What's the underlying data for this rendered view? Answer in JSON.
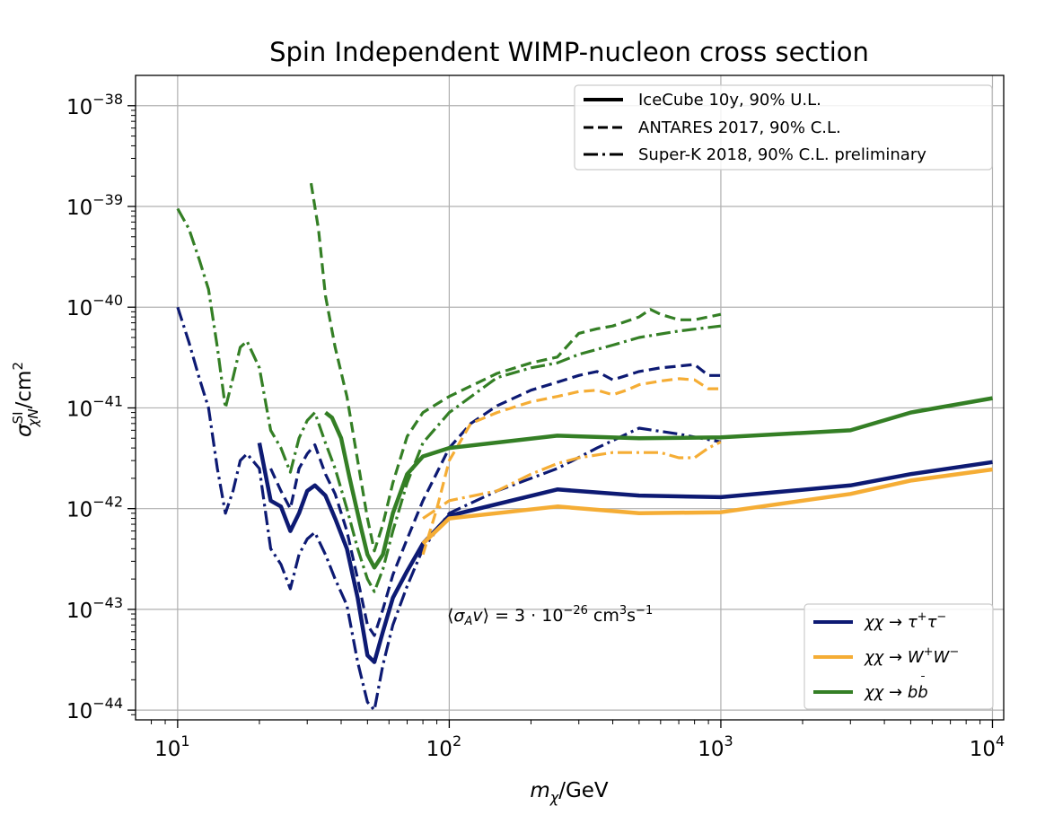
{
  "chart_data": {
    "type": "line",
    "title": "Spin Independent WIMP-nucleon cross section",
    "xlabel": "m_χ/GeV",
    "ylabel": "σ^SI_χN/cm²",
    "xscale": "log",
    "yscale": "log",
    "xlim": [
      7,
      11000
    ],
    "ylim": [
      8e-45,
      2e-38
    ],
    "grid": true,
    "x_ticks": [
      {
        "base": "10",
        "exp": "1",
        "value": 10
      },
      {
        "base": "10",
        "exp": "2",
        "value": 100
      },
      {
        "base": "10",
        "exp": "3",
        "value": 1000
      },
      {
        "base": "10",
        "exp": "4",
        "value": 10000
      }
    ],
    "y_ticks": [
      {
        "base": "10",
        "exp": "−38",
        "value": 1e-38
      },
      {
        "base": "10",
        "exp": "−39",
        "value": 1e-39
      },
      {
        "base": "10",
        "exp": "−40",
        "value": 1e-40
      },
      {
        "base": "10",
        "exp": "−41",
        "value": 1e-41
      },
      {
        "base": "10",
        "exp": "−42",
        "value": 1e-42
      },
      {
        "base": "10",
        "exp": "−43",
        "value": 1e-43
      },
      {
        "base": "10",
        "exp": "−44",
        "value": 1e-44
      }
    ],
    "annotation": "⟨σ_A v⟩ = 3 · 10⁻²⁶ cm³s⁻¹",
    "legend_styles": {
      "placement": "top-right",
      "entries": [
        {
          "label": "IceCube 10y, 90% U.L.",
          "style": "solid"
        },
        {
          "label": "ANTARES 2017, 90% C.L.",
          "style": "dashed"
        },
        {
          "label": "Super-K 2018, 90% C.L. preliminary",
          "style": "dashdot"
        }
      ]
    },
    "legend_channels": {
      "placement": "bottom-right",
      "entries": [
        {
          "label": "χχ → τ⁺τ⁻",
          "color": "#0d1a73"
        },
        {
          "label": "χχ → W⁺W⁻",
          "color": "#f5ad35"
        },
        {
          "label": "χχ → b b̄",
          "color": "#347f25"
        }
      ]
    },
    "series": [
      {
        "channel": "tau",
        "style": "solid",
        "color": "#0d1a73",
        "points": [
          [
            20,
            4.5e-42
          ],
          [
            22,
            1.2e-42
          ],
          [
            24,
            1.05e-42
          ],
          [
            26,
            6e-43
          ],
          [
            28,
            9e-43
          ],
          [
            30,
            1.5e-42
          ],
          [
            32,
            1.7e-42
          ],
          [
            35,
            1.35e-42
          ],
          [
            38,
            8e-43
          ],
          [
            42,
            4e-43
          ],
          [
            46,
            1.3e-43
          ],
          [
            50,
            3.5e-44
          ],
          [
            53,
            3e-44
          ],
          [
            57,
            6e-44
          ],
          [
            62,
            1.3e-43
          ],
          [
            70,
            2.4e-43
          ],
          [
            80,
            4.5e-43
          ],
          [
            100,
            8.5e-43
          ],
          [
            250,
            1.55e-42
          ],
          [
            500,
            1.35e-42
          ],
          [
            1000,
            1.3e-42
          ],
          [
            3000,
            1.7e-42
          ],
          [
            5000,
            2.2e-42
          ],
          [
            10000,
            2.9e-42
          ]
        ]
      },
      {
        "channel": "tau",
        "style": "dashed",
        "color": "#0d1a73",
        "points": [
          [
            22,
            2.5e-42
          ],
          [
            24,
            1.5e-42
          ],
          [
            26,
            1e-42
          ],
          [
            28,
            2.5e-42
          ],
          [
            30,
            3.5e-42
          ],
          [
            32,
            4.3e-42
          ],
          [
            35,
            2.2e-42
          ],
          [
            38,
            1.4e-42
          ],
          [
            42,
            6e-43
          ],
          [
            46,
            2e-43
          ],
          [
            50,
            7e-44
          ],
          [
            53,
            5.5e-44
          ],
          [
            57,
            1e-43
          ],
          [
            62,
            2.2e-43
          ],
          [
            70,
            5e-43
          ],
          [
            80,
            1.2e-42
          ],
          [
            100,
            4e-42
          ],
          [
            120,
            7e-42
          ],
          [
            150,
            1.05e-41
          ],
          [
            200,
            1.5e-41
          ],
          [
            250,
            1.8e-41
          ],
          [
            300,
            2.1e-41
          ],
          [
            350,
            2.3e-41
          ],
          [
            400,
            1.9e-41
          ],
          [
            500,
            2.3e-41
          ],
          [
            600,
            2.5e-41
          ],
          [
            700,
            2.6e-41
          ],
          [
            800,
            2.7e-41
          ],
          [
            900,
            2.1e-41
          ],
          [
            1000,
            2.1e-41
          ]
        ]
      },
      {
        "channel": "tau",
        "style": "dashdot",
        "color": "#0d1a73",
        "points": [
          [
            10,
            1e-40
          ],
          [
            11,
            4.5e-41
          ],
          [
            12,
            2e-41
          ],
          [
            13,
            1e-41
          ],
          [
            14,
            2.5e-42
          ],
          [
            15,
            9e-43
          ],
          [
            16,
            1.5e-42
          ],
          [
            17,
            3e-42
          ],
          [
            18,
            3.5e-42
          ],
          [
            20,
            2.5e-42
          ],
          [
            22,
            4e-43
          ],
          [
            24,
            2.8e-43
          ],
          [
            26,
            1.6e-43
          ],
          [
            28,
            3.5e-43
          ],
          [
            30,
            5e-43
          ],
          [
            32,
            5.8e-43
          ],
          [
            35,
            3.5e-43
          ],
          [
            38,
            2e-43
          ],
          [
            42,
            1.1e-43
          ],
          [
            46,
            3e-44
          ],
          [
            50,
            1.2e-44
          ],
          [
            53,
            1e-44
          ],
          [
            57,
            2.8e-44
          ],
          [
            62,
            7e-44
          ],
          [
            70,
            1.7e-43
          ],
          [
            80,
            4e-43
          ],
          [
            100,
            9e-43
          ],
          [
            150,
            1.5e-42
          ],
          [
            250,
            2.5e-42
          ],
          [
            350,
            4e-42
          ],
          [
            500,
            6.3e-42
          ],
          [
            700,
            5.5e-42
          ],
          [
            1000,
            4.6e-42
          ]
        ]
      },
      {
        "channel": "ww",
        "style": "solid",
        "color": "#f5ad35",
        "points": [
          [
            80,
            4.5e-43
          ],
          [
            100,
            8e-43
          ],
          [
            250,
            1.05e-42
          ],
          [
            500,
            9e-43
          ],
          [
            1000,
            9.2e-43
          ],
          [
            3000,
            1.4e-42
          ],
          [
            5000,
            1.9e-42
          ],
          [
            10000,
            2.45e-42
          ]
        ]
      },
      {
        "channel": "ww",
        "style": "dashed",
        "color": "#f5ad35",
        "points": [
          [
            80,
            3.5e-43
          ],
          [
            90,
            1e-42
          ],
          [
            100,
            3e-42
          ],
          [
            120,
            7e-42
          ],
          [
            150,
            9e-42
          ],
          [
            200,
            1.15e-41
          ],
          [
            250,
            1.3e-41
          ],
          [
            300,
            1.45e-41
          ],
          [
            350,
            1.5e-41
          ],
          [
            400,
            1.35e-41
          ],
          [
            450,
            1.5e-41
          ],
          [
            500,
            1.7e-41
          ],
          [
            600,
            1.85e-41
          ],
          [
            700,
            1.95e-41
          ],
          [
            800,
            1.9e-41
          ],
          [
            900,
            1.55e-41
          ],
          [
            1000,
            1.55e-41
          ]
        ]
      },
      {
        "channel": "ww",
        "style": "dashdot",
        "color": "#f5ad35",
        "points": [
          [
            80,
            8e-43
          ],
          [
            100,
            1.2e-42
          ],
          [
            150,
            1.5e-42
          ],
          [
            200,
            2.2e-42
          ],
          [
            250,
            2.8e-42
          ],
          [
            300,
            3.2e-42
          ],
          [
            400,
            3.6e-42
          ],
          [
            500,
            3.6e-42
          ],
          [
            600,
            3.6e-42
          ],
          [
            700,
            3.2e-42
          ],
          [
            800,
            3.2e-42
          ],
          [
            900,
            4e-42
          ],
          [
            1000,
            4.6e-42
          ]
        ]
      },
      {
        "channel": "bb",
        "style": "solid",
        "color": "#347f25",
        "points": [
          [
            35,
            9e-42
          ],
          [
            37,
            8e-42
          ],
          [
            40,
            5e-42
          ],
          [
            43,
            2e-42
          ],
          [
            47,
            7e-43
          ],
          [
            50,
            3.5e-43
          ],
          [
            53,
            2.6e-43
          ],
          [
            57,
            3.5e-43
          ],
          [
            62,
            9e-43
          ],
          [
            70,
            2.2e-42
          ],
          [
            80,
            3.3e-42
          ],
          [
            100,
            4e-42
          ],
          [
            250,
            5.3e-42
          ],
          [
            500,
            5e-42
          ],
          [
            1000,
            5.1e-42
          ],
          [
            3000,
            6e-42
          ],
          [
            5000,
            9e-42
          ],
          [
            10000,
            1.25e-41
          ]
        ]
      },
      {
        "channel": "bb",
        "style": "dashed",
        "color": "#347f25",
        "points": [
          [
            31,
            1.7e-39
          ],
          [
            33,
            6e-40
          ],
          [
            35,
            1.3e-40
          ],
          [
            38,
            4e-41
          ],
          [
            42,
            1.3e-41
          ],
          [
            46,
            3e-42
          ],
          [
            50,
            8e-43
          ],
          [
            53,
            3.8e-43
          ],
          [
            57,
            7e-43
          ],
          [
            62,
            1.8e-42
          ],
          [
            70,
            5.2e-42
          ],
          [
            80,
            9e-42
          ],
          [
            100,
            1.3e-41
          ],
          [
            150,
            2.2e-41
          ],
          [
            200,
            2.8e-41
          ],
          [
            250,
            3.2e-41
          ],
          [
            300,
            5.5e-41
          ],
          [
            350,
            6.1e-41
          ],
          [
            400,
            6.5e-41
          ],
          [
            500,
            8e-41
          ],
          [
            550,
            9.5e-41
          ],
          [
            600,
            8.5e-41
          ],
          [
            700,
            7.5e-41
          ],
          [
            800,
            7.5e-41
          ],
          [
            1000,
            8.5e-41
          ]
        ]
      },
      {
        "channel": "bb",
        "style": "dashdot",
        "color": "#347f25",
        "points": [
          [
            10,
            9.5e-40
          ],
          [
            11,
            6e-40
          ],
          [
            12,
            3e-40
          ],
          [
            13,
            1.5e-40
          ],
          [
            14,
            4e-41
          ],
          [
            15,
            1e-41
          ],
          [
            16,
            2e-41
          ],
          [
            17,
            4e-41
          ],
          [
            18,
            4.6e-41
          ],
          [
            20,
            2.5e-41
          ],
          [
            22,
            6e-42
          ],
          [
            24,
            4e-42
          ],
          [
            26,
            2.3e-42
          ],
          [
            28,
            5e-42
          ],
          [
            30,
            7.5e-42
          ],
          [
            32,
            9e-42
          ],
          [
            35,
            4.5e-42
          ],
          [
            38,
            2.5e-42
          ],
          [
            42,
            1e-42
          ],
          [
            46,
            4e-43
          ],
          [
            50,
            2e-43
          ],
          [
            53,
            1.5e-43
          ],
          [
            57,
            2.5e-43
          ],
          [
            62,
            6e-43
          ],
          [
            70,
            1.8e-42
          ],
          [
            80,
            4.5e-42
          ],
          [
            100,
            9e-42
          ],
          [
            150,
            2e-41
          ],
          [
            200,
            2.5e-41
          ],
          [
            250,
            2.8e-41
          ],
          [
            300,
            3.4e-41
          ],
          [
            400,
            4.2e-41
          ],
          [
            500,
            5e-41
          ],
          [
            700,
            5.8e-41
          ],
          [
            1000,
            6.5e-41
          ]
        ]
      }
    ]
  }
}
